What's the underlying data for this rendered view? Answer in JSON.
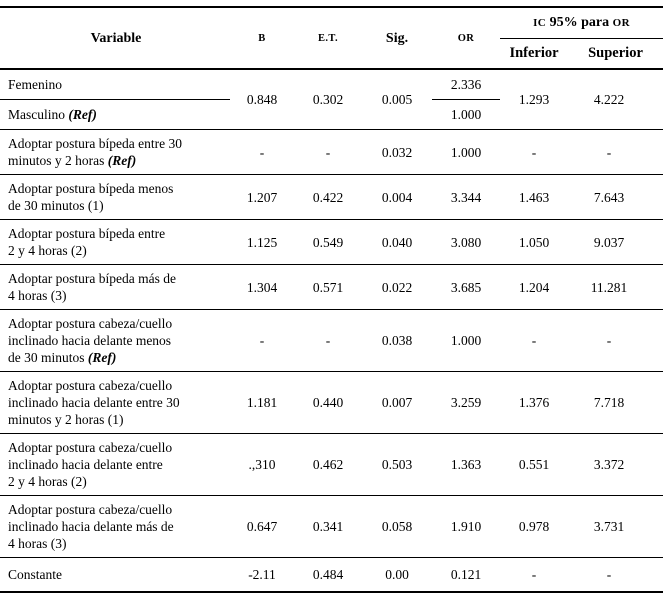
{
  "table": {
    "header": {
      "variable": "Variable",
      "b": "B",
      "et": "E.T.",
      "sig": "Sig.",
      "or": "OR",
      "ic_group": {
        "parts": [
          "IC",
          "95% para",
          "OR"
        ]
      },
      "inferior": "Inferior",
      "superior": "Superior"
    },
    "group1": {
      "femenino": {
        "variable": "Femenino",
        "or": "2.336"
      },
      "masculino": {
        "variable": "Masculino",
        "ref": "(Ref)",
        "or": "1.000"
      },
      "merged": {
        "b": "0.848",
        "et": "0.302",
        "sig": "0.005",
        "inferior": "1.293",
        "superior": "4.222"
      }
    },
    "rows": [
      {
        "variable": "Adoptar postura bípeda entre 30\nminutos y 2 horas",
        "ref": "(Ref)",
        "b": "-",
        "et": "-",
        "sig": "0.032",
        "or": "1.000",
        "inferior": "-",
        "superior": "-"
      },
      {
        "variable": "Adoptar postura bípeda menos\nde 30 minutos (1)",
        "b": "1.207",
        "et": "0.422",
        "sig": "0.004",
        "or": "3.344",
        "inferior": "1.463",
        "superior": "7.643"
      },
      {
        "variable": "Adoptar postura bípeda entre\n2 y 4 horas (2)",
        "b": "1.125",
        "et": "0.549",
        "sig": "0.040",
        "or": "3.080",
        "inferior": "1.050",
        "superior": "9.037"
      },
      {
        "variable": "Adoptar postura bípeda más de\n4 horas (3)",
        "b": "1.304",
        "et": "0.571",
        "sig": "0.022",
        "or": "3.685",
        "inferior": "1.204",
        "superior": "11.281"
      },
      {
        "variable": "Adoptar postura cabeza/cuello\ninclinado hacia delante menos\nde 30 minutos",
        "ref": "(Ref)",
        "b": "-",
        "et": "-",
        "sig": "0.038",
        "or": "1.000",
        "inferior": "-",
        "superior": "-"
      },
      {
        "variable": "Adoptar postura cabeza/cuello\ninclinado hacia delante entre 30\nminutos y 2 horas (1)",
        "b": "1.181",
        "et": "0.440",
        "sig": "0.007",
        "or": "3.259",
        "inferior": "1.376",
        "superior": "7.718"
      },
      {
        "variable": "Adoptar postura cabeza/cuello\ninclinado hacia delante entre\n2 y 4 horas (2)",
        "b": ".,310",
        "et": "0.462",
        "sig": "0.503",
        "or": "1.363",
        "inferior": "0.551",
        "superior": "3.372"
      },
      {
        "variable": "Adoptar postura cabeza/cuello\ninclinado hacia delante más de\n4 horas (3)",
        "b": "0.647",
        "et": "0.341",
        "sig": "0.058",
        "or": "1.910",
        "inferior": "0.978",
        "superior": "3.731"
      },
      {
        "variable": "Constante",
        "b": "-2.11",
        "et": "0.484",
        "sig": "0.00",
        "or": "0.121",
        "inferior": "-",
        "superior": "-"
      }
    ]
  }
}
